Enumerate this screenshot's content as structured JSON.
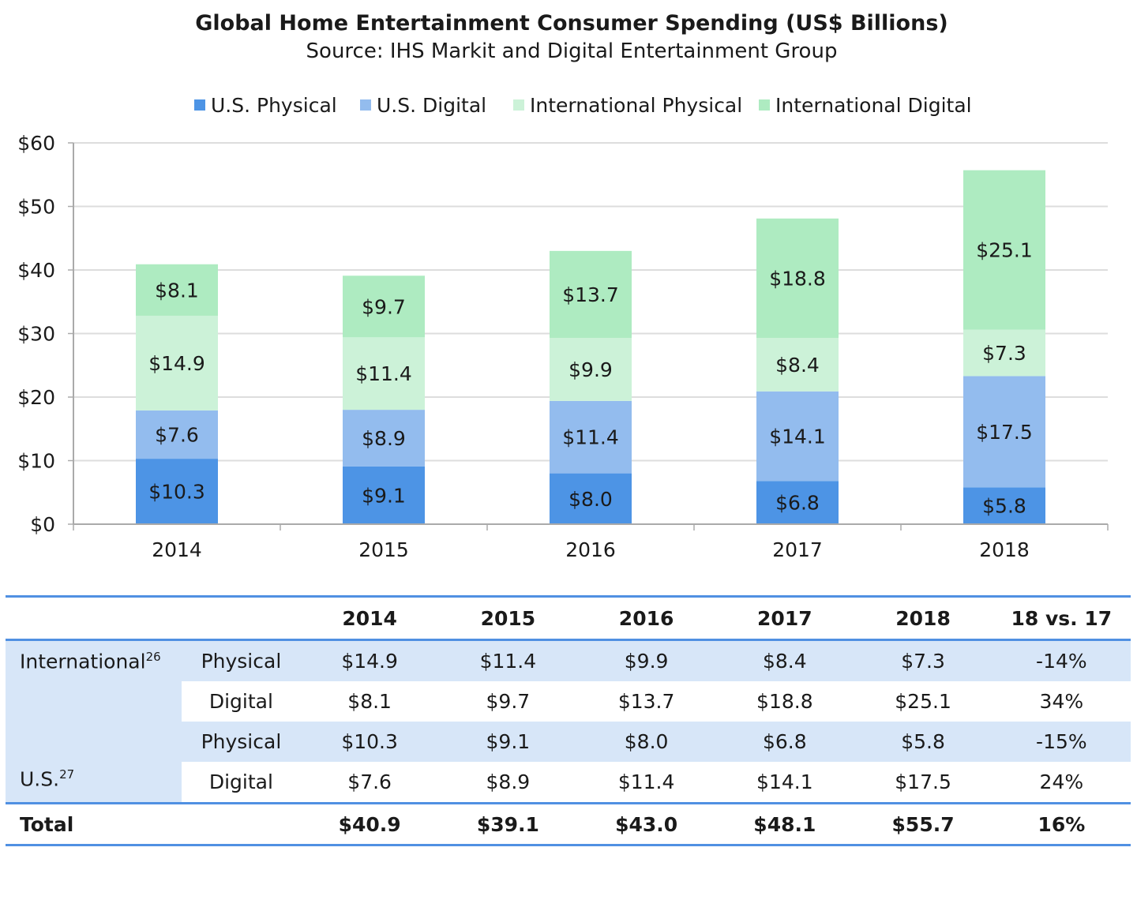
{
  "chart_data": {
    "type": "bar",
    "stacked": true,
    "title": "Global Home Entertainment Consumer Spending (US$ Billions)",
    "subtitle": "Source: IHS Markit and Digital Entertainment Group",
    "categories": [
      "2014",
      "2015",
      "2016",
      "2017",
      "2018"
    ],
    "series": [
      {
        "name": "U.S. Physical",
        "color": "#4d94e5",
        "values": [
          10.3,
          9.1,
          8.0,
          6.8,
          5.8
        ],
        "labels": [
          "$10.3",
          "$9.1",
          "$8.0",
          "$6.8",
          "$5.8"
        ]
      },
      {
        "name": "U.S. Digital",
        "color": "#93bcee",
        "values": [
          7.6,
          8.9,
          11.4,
          14.1,
          17.5
        ],
        "labels": [
          "$7.6",
          "$8.9",
          "$11.4",
          "$14.1",
          "$17.5"
        ]
      },
      {
        "name": "International Physical",
        "color": "#ccf2d8",
        "values": [
          14.9,
          11.4,
          9.9,
          8.4,
          7.3
        ],
        "labels": [
          "$14.9",
          "$11.4",
          "$9.9",
          "$8.4",
          "$7.3"
        ]
      },
      {
        "name": "International Digital",
        "color": "#aeebc1",
        "values": [
          8.1,
          9.7,
          13.7,
          18.8,
          25.1
        ],
        "labels": [
          "$8.1",
          "$9.7",
          "$13.7",
          "$18.8",
          "$25.1"
        ]
      }
    ],
    "ylim": [
      0,
      60
    ],
    "yticks": [
      "$0",
      "$10",
      "$20",
      "$30",
      "$40",
      "$50",
      "$60"
    ],
    "grid": true,
    "legend": "top"
  },
  "table": {
    "header": [
      "2014",
      "2015",
      "2016",
      "2017",
      "2018",
      "18 vs. 17"
    ],
    "groups": [
      {
        "label": "International",
        "sup": "26",
        "rows": [
          {
            "label": "Physical",
            "values": [
              "$14.9",
              "$11.4",
              "$9.9",
              "$8.4",
              "$7.3",
              "-14%"
            ]
          },
          {
            "label": "Digital",
            "values": [
              "$8.1",
              "$9.7",
              "$13.7",
              "$18.8",
              "$25.1",
              "34%"
            ]
          }
        ]
      },
      {
        "label": "U.S.",
        "sup": "27",
        "rows": [
          {
            "label": "Physical",
            "values": [
              "$10.3",
              "$9.1",
              "$8.0",
              "$6.8",
              "$5.8",
              "-15%"
            ]
          },
          {
            "label": "Digital",
            "values": [
              "$7.6",
              "$8.9",
              "$11.4",
              "$14.1",
              "$17.5",
              "24%"
            ]
          }
        ]
      }
    ],
    "total": {
      "label": "Total",
      "values": [
        "$40.9",
        "$39.1",
        "$43.0",
        "$48.1",
        "$55.7",
        "16%"
      ]
    }
  }
}
